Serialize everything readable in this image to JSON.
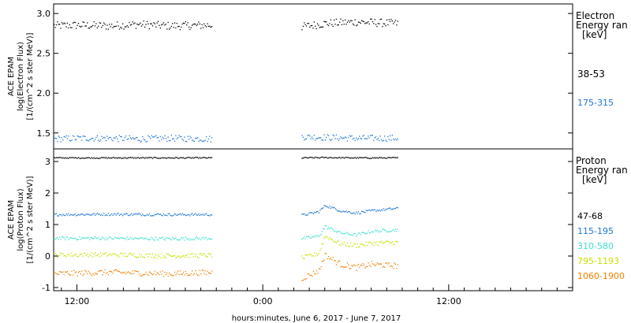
{
  "chart_data": [
    {
      "type": "scatter",
      "ylabel_lines": [
        "ACE EPAM",
        "log(Electron Flux)",
        "[1/(cm^2 s ster MeV)]"
      ],
      "ylim": [
        1.3,
        3.12
      ],
      "yticks": [
        1.5,
        2.0,
        2.5,
        3.0
      ],
      "ytick_labels": [
        "1.5",
        "2.0",
        "2.5",
        "3.0"
      ],
      "legend_title": [
        "Electron",
        "Energy ran",
        "[keV]"
      ],
      "x_range_hours": [
        10.5,
        44.0
      ],
      "data_gaps_hours": [
        [
          20.75,
          26.5
        ],
        [
          32.75,
          44.0
        ]
      ],
      "series": [
        {
          "name": "38-53",
          "color": "#000000",
          "x_hours": [
            10.5,
            12,
            14,
            16,
            18,
            20.75,
            26.5,
            28,
            30,
            32.75
          ],
          "values": [
            2.85,
            2.86,
            2.85,
            2.87,
            2.85,
            2.86,
            2.84,
            2.88,
            2.9,
            2.88
          ],
          "noise": 0.05
        },
        {
          "name": "175-315",
          "color": "#1f77d4",
          "x_hours": [
            10.5,
            12,
            14,
            16,
            18,
            20.75,
            26.5,
            28,
            30,
            32.75
          ],
          "values": [
            1.43,
            1.44,
            1.44,
            1.43,
            1.44,
            1.43,
            1.46,
            1.45,
            1.44,
            1.44
          ],
          "noise": 0.04
        }
      ]
    },
    {
      "type": "scatter",
      "ylabel_lines": [
        "ACE EPAM",
        "log(Proton Flux)",
        "[1/(cm^2 s ster MeV)]"
      ],
      "ylim": [
        -1.1,
        3.4
      ],
      "yticks": [
        -1,
        0,
        1,
        2,
        3
      ],
      "ytick_labels": [
        "-1",
        "0",
        "1",
        "2",
        "3"
      ],
      "legend_title": [
        "Proton",
        "Energy ran",
        "[keV]"
      ],
      "x_range_hours": [
        10.5,
        44.0
      ],
      "data_gaps_hours": [
        [
          20.75,
          26.5
        ],
        [
          32.75,
          44.0
        ]
      ],
      "series": [
        {
          "name": "47-68",
          "color": "#000000",
          "x_hours": [
            10.5,
            14,
            18,
            20.75,
            26.5,
            28,
            30,
            32.75
          ],
          "values": [
            3.13,
            3.13,
            3.13,
            3.13,
            3.13,
            3.14,
            3.13,
            3.13
          ],
          "noise": 0.02
        },
        {
          "name": "115-195",
          "color": "#1f77d4",
          "x_hours": [
            10.5,
            14,
            18,
            20.75,
            26.5,
            27.6,
            28.0,
            29,
            30,
            31,
            32.75
          ],
          "values": [
            1.33,
            1.34,
            1.33,
            1.33,
            1.31,
            1.42,
            1.62,
            1.45,
            1.38,
            1.45,
            1.53
          ],
          "noise": 0.04
        },
        {
          "name": "310-580",
          "color": "#40e0d0",
          "x_hours": [
            10.5,
            14,
            18,
            20.75,
            26.5,
            27.6,
            28.0,
            29,
            30,
            31,
            32.75
          ],
          "values": [
            0.58,
            0.58,
            0.56,
            0.58,
            0.56,
            0.65,
            0.95,
            0.75,
            0.68,
            0.8,
            0.85
          ],
          "noise": 0.05
        },
        {
          "name": "795-1193",
          "color": "#c8e000",
          "x_hours": [
            10.5,
            14,
            18,
            20.75,
            26.5,
            27.6,
            28.0,
            29,
            30,
            31,
            32.75
          ],
          "values": [
            0.05,
            0.06,
            0.02,
            0.04,
            -0.05,
            0.1,
            0.65,
            0.4,
            0.35,
            0.42,
            0.45
          ],
          "noise": 0.07
        },
        {
          "name": "1060-1900",
          "color": "#f08000",
          "x_hours": [
            10.5,
            14,
            18,
            20.75,
            26.5,
            27.6,
            28.0,
            29,
            30,
            31,
            32.75
          ],
          "values": [
            -0.55,
            -0.5,
            -0.55,
            -0.5,
            -0.7,
            -0.45,
            0.05,
            -0.25,
            -0.35,
            -0.25,
            -0.3
          ],
          "noise": 0.09
        }
      ]
    }
  ],
  "x_axis": {
    "tick_hours": [
      12,
      24,
      36
    ],
    "tick_labels": [
      "12:00",
      "0:00",
      "12:00"
    ],
    "minor_step_hours": 1,
    "label": "hours:minutes, June  6, 2017 - June  7, 2017"
  }
}
